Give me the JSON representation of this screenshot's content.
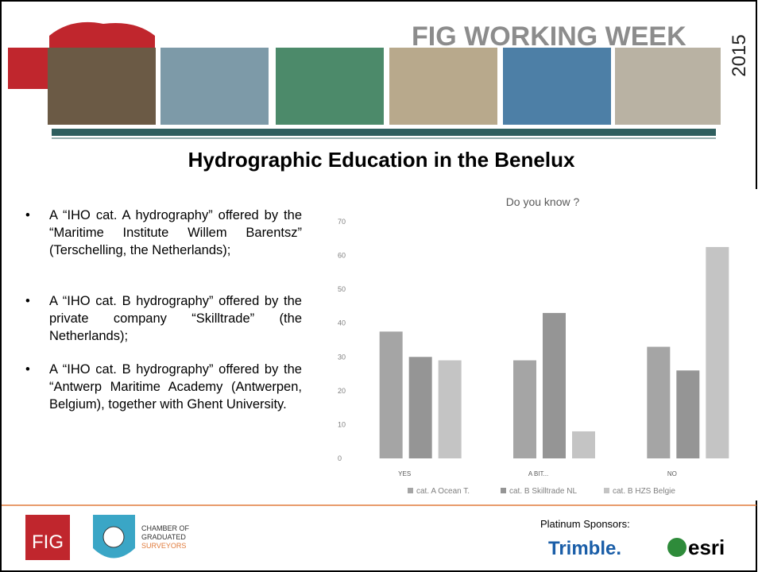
{
  "header": {
    "banner": "FIG WORKING WEEK",
    "year": "2015"
  },
  "slide": {
    "title": "Hydrographic Education in the Benelux",
    "bullets": [
      "A “IHO cat. A hydrography” offered by the “Maritime Institute Willem Barentsz” (Terschelling, the Netherlands);",
      "A “IHO cat. B hydrography” offered by the private company “Skilltrade” (the Netherlands);",
      "A “IHO cat. B hydrography” offered by the “Antwerp Maritime Academy (Antwerpen, Belgium), together with Ghent University."
    ]
  },
  "chart_data": {
    "type": "bar",
    "title": "Do you know ?",
    "categories": [
      "YES",
      "A BIT...",
      "NO"
    ],
    "series": [
      {
        "name": "cat. A Ocean T.",
        "color": "#a5a5a5",
        "values": [
          37.5,
          29,
          33
        ]
      },
      {
        "name": "cat. B Skilltrade NL",
        "color": "#959595",
        "values": [
          30,
          43,
          26
        ]
      },
      {
        "name": "cat. B HZS Belgie",
        "color": "#c4c4c4",
        "values": [
          29,
          8,
          62.5
        ]
      }
    ],
    "ylim": [
      0,
      70
    ],
    "yticks": [
      0,
      10,
      20,
      30,
      40,
      50,
      60,
      70
    ],
    "grid": false,
    "legend": "bottom"
  },
  "footer": {
    "fig_logo": "FIG",
    "chamber": [
      "CHAMBER OF",
      "GRADUATED",
      "SURVEYORS"
    ],
    "sponsors_label": "Platinum Sponsors:",
    "sponsor_1": "Trimble.",
    "sponsor_2": "esri"
  }
}
